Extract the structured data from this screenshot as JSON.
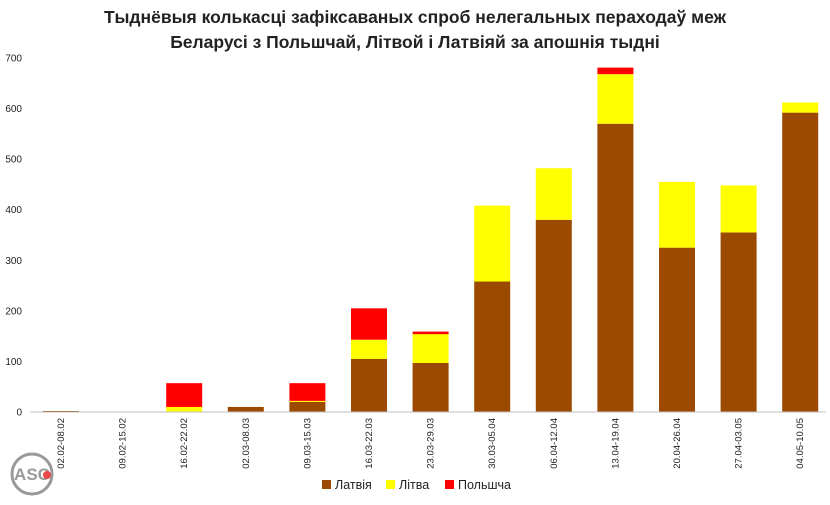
{
  "chart_data": {
    "type": "bar",
    "stacked": true,
    "title_lines": [
      "Тыднёвыя колькасці зафіксаваных спроб нелегальных пераходаў меж",
      "Беларусі з Польшчай, Літвой і Латвіяй за апошнія тыдні"
    ],
    "categories": [
      "02.02-08.02",
      "09.02-15.02",
      "16.02-22.02",
      "02.03-08.03",
      "09.03-15.03",
      "16.03-22.03",
      "23.03-29.03",
      "30.03-05.04",
      "06.04-12.04",
      "13.04-19.04",
      "20.04-26.04",
      "27.04-03.05",
      "04.05-10.05"
    ],
    "series": [
      {
        "name": "Латвія",
        "color": "#9c4a00",
        "values": [
          2,
          0,
          0,
          10,
          20,
          105,
          97,
          258,
          380,
          570,
          325,
          355,
          592
        ]
      },
      {
        "name": "Літва",
        "color": "#ffff00",
        "values": [
          0,
          0,
          10,
          0,
          2,
          38,
          57,
          150,
          102,
          98,
          130,
          93,
          20
        ]
      },
      {
        "name": "Польшча",
        "color": "#ff0000",
        "values": [
          0,
          0,
          47,
          0,
          35,
          62,
          5,
          0,
          0,
          13,
          0,
          0,
          0
        ]
      }
    ],
    "y_ticks": [
      "0",
      "100",
      "200",
      "300",
      "400",
      "500",
      "600",
      "700"
    ],
    "ylim": [
      0,
      700
    ],
    "grid": false,
    "legend_position": "bottom",
    "xlabel": "",
    "ylabel": ""
  },
  "logo": {
    "text": "ASC",
    "icon": "asc-logo-icon"
  }
}
